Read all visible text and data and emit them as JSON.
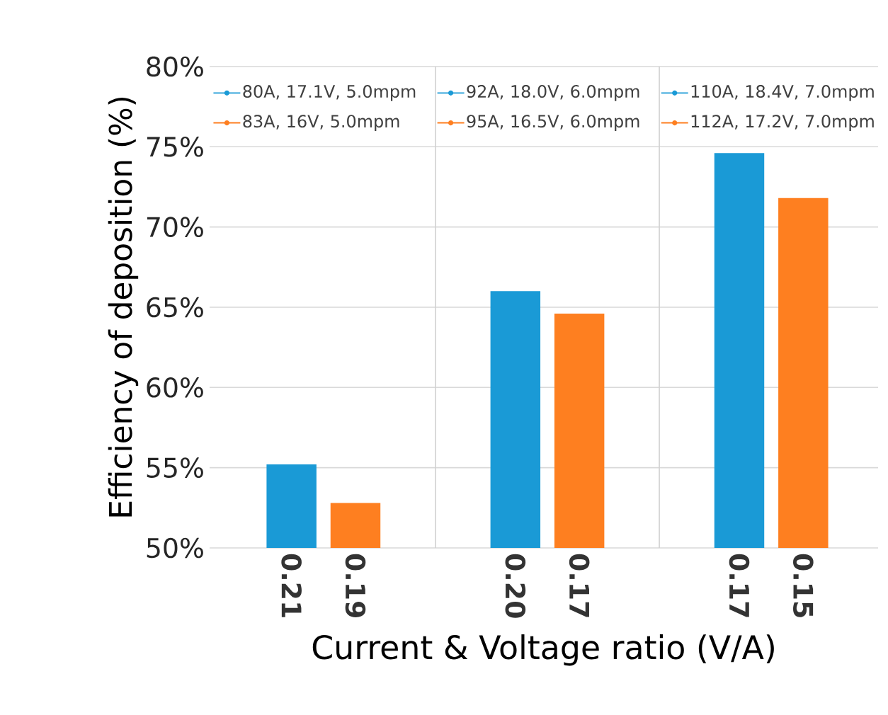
{
  "chart_data": {
    "type": "bar",
    "ylabel": "Efficiency of deposition (%)",
    "xlabel": "Current & Voltage ratio (V/A)",
    "categories": [
      "0.21",
      "0.19",
      "0.20",
      "0.17",
      "0.17",
      "0.15"
    ],
    "series": [
      {
        "name": "80A, 17.1V, 5.0mpm",
        "color": "#1a9ad6",
        "values": [
          55.2,
          null,
          null,
          null,
          null,
          null
        ]
      },
      {
        "name": "83A, 16V, 5.0mpm",
        "color": "#fe7f20",
        "values": [
          null,
          52.8,
          null,
          null,
          null,
          null
        ]
      },
      {
        "name": "92A, 18.0V, 6.0mpm",
        "color": "#1a9ad6",
        "values": [
          null,
          null,
          66.0,
          null,
          null,
          null
        ]
      },
      {
        "name": "95A, 16.5V, 6.0mpm",
        "color": "#fe7f20",
        "values": [
          null,
          null,
          null,
          64.6,
          null,
          null
        ]
      },
      {
        "name": "110A, 18.4V, 7.0mpm",
        "color": "#1a9ad6",
        "values": [
          null,
          null,
          null,
          null,
          74.6,
          null
        ]
      },
      {
        "name": "112A, 17.2V, 7.0mpm",
        "color": "#fe7f20",
        "values": [
          null,
          null,
          null,
          null,
          null,
          71.8
        ]
      }
    ],
    "ylim": [
      50,
      80
    ],
    "yticks": [
      {
        "value": 50,
        "label": "50%"
      },
      {
        "value": 55,
        "label": "55%"
      },
      {
        "value": 60,
        "label": "60%"
      },
      {
        "value": 65,
        "label": "65%"
      },
      {
        "value": 70,
        "label": "70%"
      },
      {
        "value": 75,
        "label": "75%"
      },
      {
        "value": 80,
        "label": "80%"
      }
    ],
    "grid": "y",
    "legend": "top",
    "marker": "circle"
  }
}
